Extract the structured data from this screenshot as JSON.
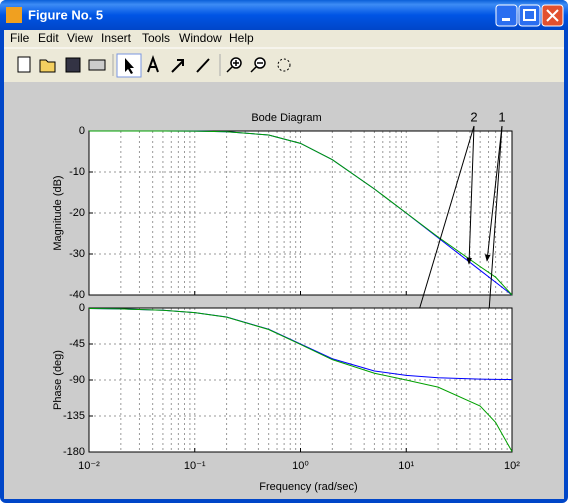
{
  "window": {
    "title": "Figure No. 5",
    "menu": [
      "File",
      "Edit",
      "View",
      "Insert",
      "Tools",
      "Window",
      "Help"
    ]
  },
  "chart_data": [
    {
      "type": "line",
      "title": "Bode Diagram",
      "y_label": "Magnitude (dB)",
      "log_x": true,
      "grid": true,
      "x": [
        0.01,
        0.02,
        0.05,
        0.1,
        0.2,
        0.5,
        1,
        2,
        5,
        10,
        20,
        50,
        70,
        100
      ],
      "xlim": [
        0.01,
        100
      ],
      "xticks": [
        0.01,
        0.1,
        1,
        10,
        100
      ],
      "ylim": [
        -40,
        0
      ],
      "yticks": [
        0,
        -10,
        -20,
        -30,
        -40
      ],
      "annotations": [
        "2",
        "1"
      ],
      "series": [
        {
          "color": "#0000ff",
          "values": [
            0,
            -0.002,
            -0.01,
            -0.04,
            -0.17,
            -0.97,
            -3.01,
            -6.99,
            -14.15,
            -20.04,
            -26.03,
            -33.98,
            -36.9,
            -40
          ]
        },
        {
          "color": "#00a000",
          "values": [
            0,
            -0.002,
            -0.01,
            -0.04,
            -0.17,
            -0.97,
            -3.01,
            -6.99,
            -14.14,
            -20.0,
            -25.86,
            -33.08,
            -35.65,
            -40
          ]
        }
      ]
    },
    {
      "type": "line",
      "y_label": "Phase (deg)",
      "x_label": "Frequency  (rad/sec)",
      "log_x": true,
      "grid": true,
      "x": [
        0.01,
        0.02,
        0.05,
        0.1,
        0.2,
        0.5,
        1,
        2,
        5,
        10,
        20,
        50,
        70,
        100
      ],
      "xlim": [
        0.01,
        100
      ],
      "xticks": [
        {
          "value": 0.01,
          "label": "10⁻²"
        },
        {
          "value": 0.1,
          "label": "10⁻¹"
        },
        {
          "value": 1,
          "label": "10⁰"
        },
        {
          "value": 10,
          "label": "10¹"
        },
        {
          "value": 100,
          "label": "10²"
        }
      ],
      "ylim": [
        -180,
        0
      ],
      "yticks": [
        0,
        -45,
        -90,
        -135,
        -180
      ],
      "series": [
        {
          "color": "#0000ff",
          "values": [
            -0.57,
            -1.15,
            -2.86,
            -5.71,
            -11.31,
            -26.57,
            -45,
            -63.43,
            -78.69,
            -84.29,
            -87.14,
            -88.85,
            -89.18,
            -89.43
          ]
        },
        {
          "color": "#00a000",
          "values": [
            -0.58,
            -1.16,
            -2.89,
            -5.77,
            -11.42,
            -26.86,
            -45.57,
            -64.58,
            -81.56,
            -90.06,
            -98.91,
            -122.54,
            -143.08,
            -179.43
          ]
        }
      ]
    }
  ]
}
